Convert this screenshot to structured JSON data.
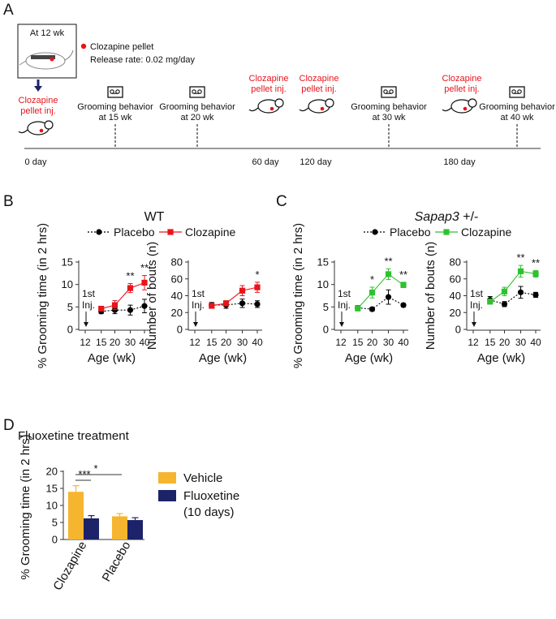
{
  "panels": {
    "A": "A",
    "B": "B",
    "C": "C",
    "D": "D"
  },
  "timeline": {
    "inset_label": "At 12 wk",
    "legend_dot_label": "Clozapine pellet",
    "release_rate": "Release rate: 0.02 mg/day",
    "colors": {
      "clozapine_text": "#e8141b",
      "axis": "#333333"
    },
    "events": [
      {
        "line1": "Clozapine",
        "line2": "pellet inj.",
        "kind": "injection"
      },
      {
        "line1": "Grooming behavior",
        "line2": "at 15 wk",
        "kind": "recording"
      },
      {
        "line1": "Grooming behavior",
        "line2": "at 20 wk",
        "kind": "recording"
      },
      {
        "line1": "Clozapine",
        "line2": "pellet inj.",
        "kind": "injection"
      },
      {
        "line1": "Clozapine",
        "line2": "pellet inj.",
        "kind": "injection"
      },
      {
        "line1": "Grooming behavior",
        "line2": "at 30 wk",
        "kind": "recording"
      },
      {
        "line1": "Clozapine",
        "line2": "pellet inj.",
        "kind": "injection"
      },
      {
        "line1": "Grooming behavior",
        "line2": "at 40 wk",
        "kind": "recording"
      }
    ],
    "day_labels": [
      "0 day",
      "60 day",
      "120 day",
      "180 day"
    ],
    "icons": [
      "mouse-icon",
      "video-camera-icon",
      "down-arrow-icon"
    ]
  },
  "chart_data": [
    {
      "type": "line",
      "id": "B1",
      "title": "WT",
      "xlabel": "Age (wk)",
      "ylabel": "% Grooming time (in 2 hrs)",
      "xticks": [
        "12",
        "15",
        "20",
        "30",
        "40"
      ],
      "ylim": [
        0,
        15
      ],
      "yticks": [
        0,
        5,
        10,
        15
      ],
      "annotation": "1st\nInj.",
      "series": [
        {
          "name": "Placebo",
          "color": "#000000",
          "x": [
            15,
            20,
            30,
            40
          ],
          "values": [
            4.0,
            4.3,
            4.3,
            5.2
          ],
          "err": [
            0.5,
            0.8,
            1.1,
            1.5
          ]
        },
        {
          "name": "Clozapine",
          "color": "#e8141b",
          "x": [
            15,
            20,
            30,
            40
          ],
          "values": [
            4.6,
            5.4,
            9.2,
            10.4
          ],
          "err": [
            0.5,
            1.0,
            1.0,
            1.6
          ]
        }
      ],
      "significance": [
        {
          "x": 30,
          "label": "**"
        },
        {
          "x": 40,
          "label": "**"
        }
      ]
    },
    {
      "type": "line",
      "id": "B2",
      "xlabel": "Age (wk)",
      "ylabel": "Number of bouts (n)",
      "xticks": [
        "12",
        "15",
        "20",
        "30",
        "40"
      ],
      "ylim": [
        0,
        80
      ],
      "yticks": [
        0,
        20,
        40,
        60,
        80
      ],
      "annotation": "1st\nInj.",
      "series": [
        {
          "name": "Placebo",
          "color": "#000000",
          "x": [
            15,
            20,
            30,
            40
          ],
          "values": [
            29,
            29,
            31,
            30
          ],
          "err": [
            3,
            4,
            5,
            4
          ]
        },
        {
          "name": "Clozapine",
          "color": "#e8141b",
          "x": [
            15,
            20,
            30,
            40
          ],
          "values": [
            28,
            31,
            46,
            50
          ],
          "err": [
            3,
            3,
            6,
            6
          ]
        }
      ],
      "significance": [
        {
          "x": 40,
          "label": "*"
        }
      ]
    },
    {
      "type": "line",
      "id": "C1",
      "title_italic": "Sapap3",
      "title_rest": " +/-",
      "xlabel": "Age (wk)",
      "ylabel": "% Grooming time (in 2 hrs)",
      "xticks": [
        "12",
        "15",
        "20",
        "30",
        "40"
      ],
      "ylim": [
        0,
        15
      ],
      "yticks": [
        0,
        5,
        10,
        15
      ],
      "annotation": "1st\nInj.",
      "series": [
        {
          "name": "Placebo",
          "color": "#000000",
          "x": [
            15,
            20,
            30,
            40
          ],
          "values": [
            4.8,
            4.5,
            7.2,
            5.4
          ],
          "err": [
            0.5,
            0.4,
            1.6,
            0.4
          ]
        },
        {
          "name": "Clozapine",
          "color": "#2fc12f",
          "x": [
            15,
            20,
            30,
            40
          ],
          "values": [
            4.7,
            8.2,
            12.3,
            9.9
          ],
          "err": [
            0.6,
            1.2,
            1.2,
            0.6
          ]
        }
      ],
      "significance": [
        {
          "x": 20,
          "label": "*"
        },
        {
          "x": 30,
          "label": "**"
        },
        {
          "x": 40,
          "label": "**"
        }
      ]
    },
    {
      "type": "line",
      "id": "C2",
      "xlabel": "Age (wk)",
      "ylabel": "Number of bouts (n)",
      "xticks": [
        "12",
        "15",
        "20",
        "30",
        "40"
      ],
      "ylim": [
        0,
        80
      ],
      "yticks": [
        0,
        20,
        40,
        60,
        80
      ],
      "annotation": "1st\nInj.",
      "series": [
        {
          "name": "Placebo",
          "color": "#000000",
          "x": [
            15,
            20,
            30,
            40
          ],
          "values": [
            35,
            30,
            44,
            41
          ],
          "err": [
            4,
            3,
            7,
            3
          ]
        },
        {
          "name": "Clozapine",
          "color": "#2fc12f",
          "x": [
            15,
            20,
            30,
            40
          ],
          "values": [
            33,
            45,
            69,
            66
          ],
          "err": [
            3,
            5,
            7,
            4
          ]
        }
      ],
      "significance": [
        {
          "x": 30,
          "label": "**"
        },
        {
          "x": 40,
          "label": "**"
        }
      ]
    },
    {
      "type": "bar",
      "id": "D",
      "title": "Fluoxetine treatment",
      "ylabel": "% Grooming time (in 2 hrs)",
      "categories": [
        "Clozapine",
        "Placebo"
      ],
      "ylim": [
        0,
        20
      ],
      "yticks": [
        0,
        5,
        10,
        15,
        20
      ],
      "series": [
        {
          "name": "Vehicle",
          "color": "#f6b52e",
          "values": [
            14.0,
            6.8
          ],
          "err": [
            1.8,
            0.8
          ]
        },
        {
          "name": "Fluoxetine",
          "name_line2": "(10 days)",
          "color": "#1c2369",
          "values": [
            6.2,
            5.7
          ],
          "err": [
            0.8,
            0.7
          ]
        }
      ],
      "significance": [
        {
          "label": "***"
        },
        {
          "label": "*"
        }
      ]
    }
  ]
}
